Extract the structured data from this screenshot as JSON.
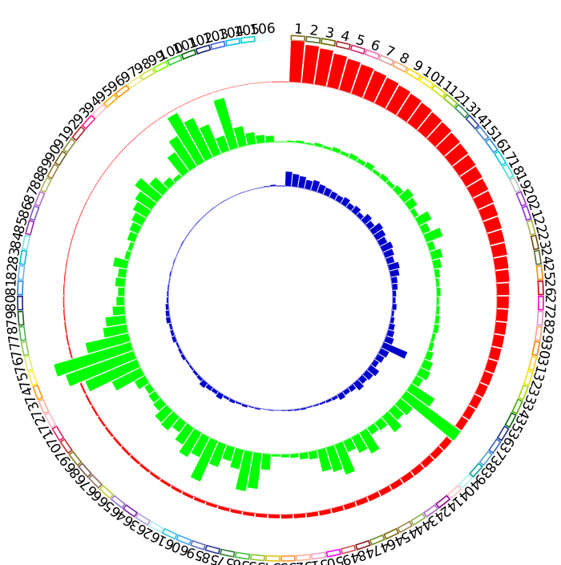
{
  "chart_data": {
    "type": "circular-bar",
    "title": "",
    "segments": {
      "labels": [
        "1",
        "2",
        "3",
        "4",
        "5",
        "6",
        "7",
        "8",
        "9",
        "10",
        "11",
        "12",
        "13",
        "14",
        "15",
        "16",
        "17",
        "18",
        "19",
        "20",
        "21",
        "22",
        "23",
        "24",
        "25",
        "26",
        "27",
        "28",
        "29",
        "30",
        "31",
        "32",
        "33",
        "34",
        "35",
        "36",
        "37",
        "38",
        "39",
        "40",
        "41",
        "42",
        "43",
        "44",
        "45",
        "46",
        "47",
        "48",
        "49",
        "50",
        "51",
        "52",
        "53",
        "54",
        "55",
        "56",
        "57",
        "58",
        "59",
        "60",
        "61",
        "62",
        "63",
        "64",
        "65",
        "66",
        "67",
        "68",
        "69",
        "70",
        "71",
        "72",
        "73",
        "74",
        "75",
        "76",
        "77",
        "78",
        "79",
        "80",
        "81",
        "82",
        "83",
        "84",
        "85",
        "86",
        "87",
        "88",
        "89",
        "90",
        "91",
        "92",
        "93",
        "94",
        "95",
        "96",
        "97",
        "98",
        "99",
        "100",
        "101",
        "102",
        "103",
        "104",
        "105",
        "106"
      ],
      "palette": [
        "#8b6914",
        "#556b2f",
        "#6b6b00",
        "#a52a2a",
        "#d1206e",
        "#ff69b4",
        "#d8a0a0",
        "#f4a460",
        "#ffd700",
        "#ffe600",
        "#ccdd00",
        "#7ec800",
        "#2e8b57",
        "#1e3c9c",
        "#4a7fd6",
        "#2090e8",
        "#00c8e0",
        "#40e0d0",
        "#c0c0c0",
        "#9932cc",
        "#8a2be2",
        "#b0b040",
        "#6b4a00",
        "#556b2f",
        "#ff8c00",
        "#cc0000",
        "#ff00cc",
        "#d896c8",
        "#ffa07a",
        "#ff8000",
        "#ffd000",
        "#e8e800",
        "#a8d800",
        "#44aa00",
        "#006400",
        "#1a2a8a",
        "#3060c0",
        "#4aa0e0",
        "#00a0a0",
        "#b0f0f0",
        "#ffc0cb",
        "#8b008b",
        "#aa66cc",
        "#8ab04a",
        "#a08040",
        "#7a6000",
        "#6b8e23",
        "#8b1a1a",
        "#d05050",
        "#ff00ff",
        "#f0a0d0",
        "#ffb090",
        "#ff9020",
        "#e0c000",
        "#90c030",
        "#40c040",
        "#2e7d32",
        "#283593",
        "#5c6bc0",
        "#42a5f5",
        "#26c6da",
        "#b2ebf2",
        "#b39ddb",
        "#7b1fa2",
        "#9575cd",
        "#c0ca33",
        "#8d6e63",
        "#795548",
        "#827717",
        "#c62828",
        "#e91e63",
        "#f8bbd0",
        "#ffab91",
        "#ff9800",
        "#ffeb3b",
        "#dce775",
        "#8bc34a",
        "#4caf50",
        "#1b5e20",
        "#1a237e",
        "#1e88e5",
        "#64b5f6",
        "#00bcd4",
        "#80deea",
        "#9c27b0",
        "#7e57c2",
        "#ba68c8",
        "#aeb85a",
        "#9e7b3a",
        "#6d5d1a",
        "#8a8a3a",
        "#b22222",
        "#ff1493",
        "#ffc0cb",
        "#ffa500",
        "#ff8c00",
        "#f0e68c",
        "#cddc39",
        "#7fff00",
        "#32cd32",
        "#006400",
        "#191970",
        "#4169e1",
        "#00bfff",
        "#00ced1",
        "#e0ffff"
      ],
      "gap_after_label": "106"
    },
    "series": [
      {
        "name": "",
        "color": "#ff0000",
        "ring": "outer",
        "values": [
          1.0,
          0.92,
          0.88,
          0.82,
          0.78,
          0.75,
          0.72,
          0.69,
          0.66,
          0.63,
          0.6,
          0.57,
          0.55,
          0.52,
          0.5,
          0.48,
          0.46,
          0.44,
          0.42,
          0.4,
          0.38,
          0.36,
          0.35,
          0.33,
          0.32,
          0.3,
          0.29,
          0.28,
          0.27,
          0.26,
          0.25,
          0.24,
          0.23,
          0.22,
          0.21,
          0.2,
          0.19,
          0.18,
          0.17,
          0.165,
          0.16,
          0.155,
          0.15,
          0.145,
          0.14,
          0.135,
          0.13,
          0.125,
          0.12,
          0.115,
          0.11,
          0.105,
          0.1,
          0.095,
          0.09,
          0.087,
          0.083,
          0.08,
          0.077,
          0.074,
          0.071,
          0.068,
          0.065,
          0.062,
          0.06,
          0.058,
          0.055,
          0.052,
          0.05,
          0.048,
          0.046,
          0.044,
          0.042,
          0.04,
          0.038,
          0.036,
          0.034,
          0.032,
          0.03,
          0.028,
          0.026,
          0.024,
          0.022,
          0.02,
          0.019,
          0.018,
          0.017,
          0.016,
          0.015,
          0.014,
          0.013,
          0.012,
          0.011,
          0.01,
          0.01,
          0.01,
          0.01,
          0.01,
          0.01,
          0.01,
          0.01,
          0.01,
          0.01,
          0.01,
          0.01,
          0.01
        ]
      },
      {
        "name": "",
        "color": "#00ff00",
        "ring": "middle",
        "values": [
          0.02,
          0.03,
          0.02,
          0.04,
          0.03,
          0.05,
          0.04,
          0.06,
          0.05,
          0.07,
          0.04,
          0.06,
          0.05,
          0.08,
          0.15,
          0.12,
          0.06,
          0.18,
          0.1,
          0.22,
          0.08,
          0.14,
          0.1,
          0.06,
          0.04,
          0.05,
          0.03,
          0.04,
          0.05,
          0.06,
          0.04,
          0.05,
          0.08,
          0.12,
          0.14,
          0.1,
          0.35,
          0.85,
          0.2,
          0.16,
          0.25,
          0.12,
          0.1,
          0.3,
          0.22,
          0.15,
          0.4,
          0.32,
          0.28,
          0.1,
          0.08,
          0.05,
          0.04,
          0.03,
          0.2,
          0.45,
          0.5,
          0.25,
          0.18,
          0.3,
          0.55,
          0.28,
          0.35,
          0.25,
          0.15,
          0.22,
          0.2,
          0.12,
          0.1,
          0.08,
          0.15,
          0.4,
          0.7,
          0.9,
          1.0,
          0.55,
          0.3,
          0.25,
          0.15,
          0.1,
          0.08,
          0.12,
          0.1,
          0.18,
          0.06,
          0.05,
          0.1,
          0.12,
          0.15,
          0.2,
          0.25,
          0.35,
          0.22,
          0.1,
          0.05,
          0.3,
          0.45,
          0.7,
          0.55,
          0.4,
          0.2,
          0.65,
          0.25,
          0.15,
          0.1,
          0.08
        ]
      },
      {
        "name": "",
        "color": "#0000cc",
        "ring": "inner",
        "values": [
          0.48,
          0.42,
          0.38,
          0.3,
          0.35,
          0.28,
          0.25,
          0.22,
          0.2,
          0.26,
          0.18,
          0.24,
          0.15,
          0.3,
          0.22,
          0.4,
          0.35,
          0.28,
          0.38,
          0.32,
          0.25,
          0.36,
          0.3,
          0.2,
          0.18,
          0.12,
          0.1,
          0.14,
          0.08,
          0.12,
          0.18,
          0.22,
          0.28,
          0.85,
          0.3,
          0.25,
          0.18,
          0.35,
          0.28,
          0.22,
          0.3,
          0.18,
          0.15,
          0.2,
          0.1,
          0.08,
          0.06,
          0.05,
          0.04,
          0.06,
          0.05,
          0.04,
          0.03,
          0.02,
          0.03,
          0.02,
          0.05,
          0.04,
          0.08,
          0.06,
          0.1,
          0.08,
          0.18,
          0.12,
          0.14,
          0.2,
          0.1,
          0.08,
          0.06,
          0.05,
          0.1,
          0.08,
          0.06,
          0.12,
          0.1,
          0.08,
          0.14,
          0.12,
          0.1,
          0.06,
          0.05,
          0.04,
          0.03,
          0.04,
          0.02,
          0.03,
          0.02,
          0.02,
          0.03,
          0.02,
          0.02,
          0.01,
          0.02,
          0.01,
          0.01,
          0.02,
          0.01,
          0.02,
          0.01,
          0.01,
          0.02,
          0.01,
          0.01,
          0.02,
          0.03,
          0.05
        ]
      }
    ]
  }
}
